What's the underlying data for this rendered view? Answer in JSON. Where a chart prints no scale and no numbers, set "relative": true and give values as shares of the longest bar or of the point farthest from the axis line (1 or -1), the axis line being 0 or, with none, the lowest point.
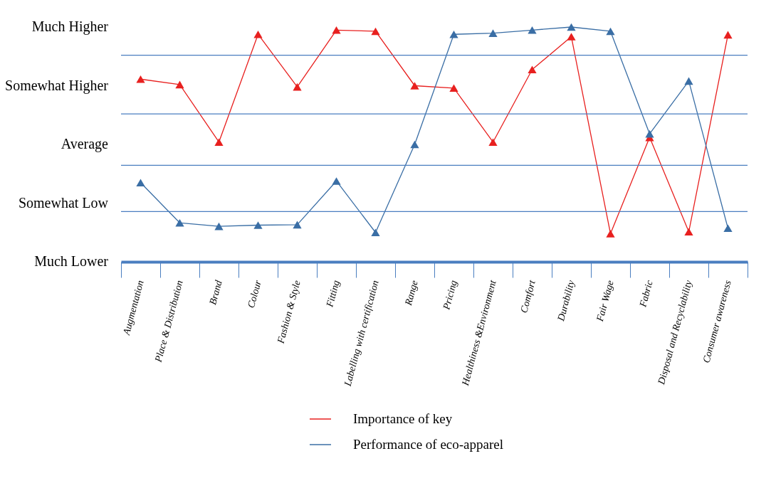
{
  "chart_data": {
    "type": "line",
    "relative": true,
    "categories": [
      "Augmentation",
      "Place & Distribution",
      "Brand",
      "Colour",
      "Fashion & Style",
      "Fitting",
      "Labelling with certification",
      "Range",
      "Pricing",
      "Healthiness &Environment",
      "Comfort",
      "Durability",
      "Fair Wage",
      "Fabric",
      "Disposal and Recyclability",
      "Consumer awareness"
    ],
    "series": [
      {
        "name": "Importance of key",
        "color": "#e8201f",
        "values": [
          0.778,
          0.755,
          0.51,
          0.969,
          0.745,
          0.987,
          0.982,
          0.75,
          0.74,
          0.51,
          0.819,
          0.959,
          0.12,
          0.53,
          0.128,
          0.967
        ]
      },
      {
        "name": "Performance of eco-apparel",
        "color": "#3a6ea5",
        "values": [
          0.337,
          0.166,
          0.151,
          0.156,
          0.158,
          0.344,
          0.125,
          0.5,
          0.969,
          0.974,
          0.987,
          1,
          0.982,
          0.545,
          0.77,
          0.143
        ]
      }
    ],
    "annotations": [
      "Much Higher",
      "Somewhat Higher",
      "Average",
      "Somewhat Low",
      "Much Lower"
    ],
    "ref_lines": [
      {
        "axis": "y",
        "value": 0.88,
        "color": "#4a7ec0"
      },
      {
        "axis": "y",
        "value": 0.63,
        "color": "#4a7ec0"
      },
      {
        "axis": "y",
        "value": 0.411,
        "color": "#4a7ec0"
      },
      {
        "axis": "y",
        "value": 0.214,
        "color": "#4a7ec0"
      }
    ],
    "legend": "bottom",
    "marker": "triangle",
    "line_style": "solid"
  }
}
